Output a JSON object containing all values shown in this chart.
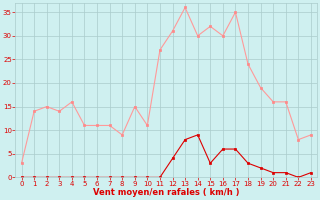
{
  "x": [
    0,
    1,
    2,
    3,
    4,
    5,
    6,
    7,
    8,
    9,
    10,
    11,
    12,
    13,
    14,
    15,
    16,
    17,
    18,
    19,
    20,
    21,
    22,
    23
  ],
  "rafales": [
    3,
    14,
    15,
    14,
    16,
    11,
    11,
    11,
    9,
    15,
    11,
    27,
    31,
    36,
    30,
    32,
    30,
    35,
    24,
    19,
    16,
    16,
    8,
    9
  ],
  "moyen": [
    0,
    0,
    0,
    0,
    0,
    0,
    0,
    0,
    0,
    0,
    0,
    0,
    4,
    8,
    9,
    3,
    6,
    6,
    3,
    2,
    1,
    1,
    0,
    1
  ],
  "bg_color": "#cff0f0",
  "grid_color": "#aacccc",
  "line_color_rafales": "#ff9999",
  "line_color_moyen": "#dd0000",
  "marker_color_rafales": "#ff8888",
  "marker_color_moyen": "#dd0000",
  "tick_color": "#dd0000",
  "xlabel": "Vent moyen/en rafales ( km/h )",
  "ylim": [
    0,
    37
  ],
  "xlim": [
    -0.5,
    23.5
  ],
  "yticks": [
    0,
    5,
    10,
    15,
    20,
    25,
    30,
    35
  ],
  "xticks": [
    0,
    1,
    2,
    3,
    4,
    5,
    6,
    7,
    8,
    9,
    10,
    11,
    12,
    13,
    14,
    15,
    16,
    17,
    18,
    19,
    20,
    21,
    22,
    23
  ],
  "tick_fontsize": 5.0,
  "xlabel_fontsize": 6.0
}
